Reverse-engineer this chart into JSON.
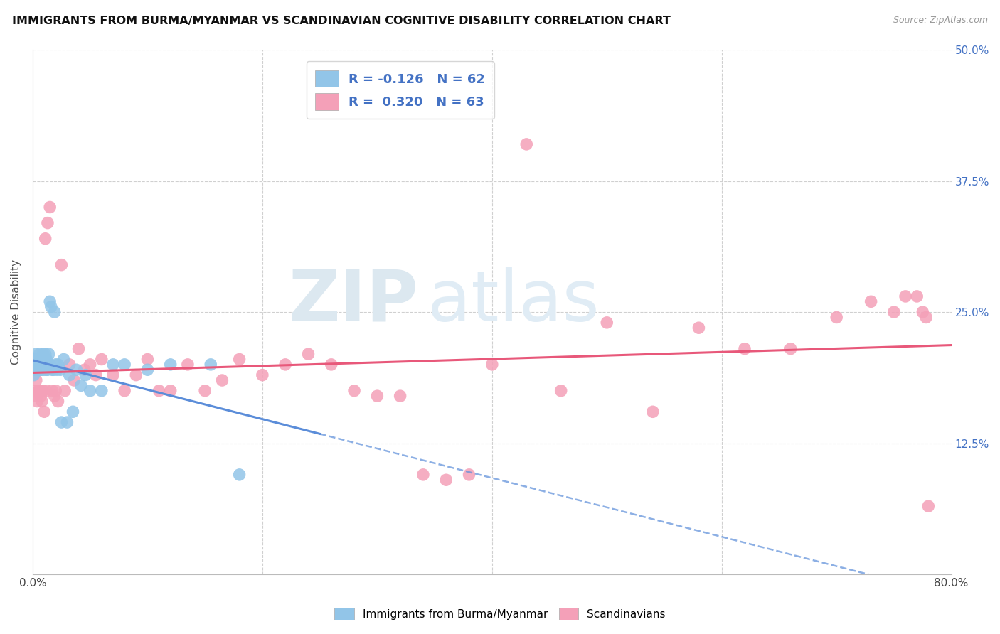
{
  "title": "IMMIGRANTS FROM BURMA/MYANMAR VS SCANDINAVIAN COGNITIVE DISABILITY CORRELATION CHART",
  "source": "Source: ZipAtlas.com",
  "ylabel": "Cognitive Disability",
  "xlim": [
    0.0,
    0.8
  ],
  "ylim": [
    0.0,
    0.5
  ],
  "blue_color": "#92C5E8",
  "pink_color": "#F4A0B8",
  "blue_line_color": "#5B8DD9",
  "pink_line_color": "#E8587A",
  "watermark_zip": "ZIP",
  "watermark_atlas": "atlas",
  "legend_blue_label": "R = -0.126   N = 62",
  "legend_pink_label": "R =  0.320   N = 63",
  "legend_label_blue": "Immigrants from Burma/Myanmar",
  "legend_label_pink": "Scandinavians",
  "blue_x": [
    0.0005,
    0.001,
    0.0015,
    0.002,
    0.002,
    0.0025,
    0.003,
    0.003,
    0.0035,
    0.004,
    0.004,
    0.004,
    0.005,
    0.005,
    0.005,
    0.006,
    0.006,
    0.006,
    0.007,
    0.007,
    0.007,
    0.008,
    0.008,
    0.008,
    0.009,
    0.009,
    0.01,
    0.01,
    0.01,
    0.011,
    0.011,
    0.012,
    0.012,
    0.013,
    0.013,
    0.014,
    0.015,
    0.015,
    0.016,
    0.017,
    0.018,
    0.019,
    0.02,
    0.021,
    0.022,
    0.024,
    0.025,
    0.027,
    0.03,
    0.032,
    0.035,
    0.038,
    0.042,
    0.046,
    0.05,
    0.06,
    0.07,
    0.08,
    0.1,
    0.12,
    0.155,
    0.18
  ],
  "blue_y": [
    0.205,
    0.19,
    0.2,
    0.195,
    0.2,
    0.195,
    0.2,
    0.21,
    0.205,
    0.195,
    0.205,
    0.2,
    0.195,
    0.205,
    0.2,
    0.205,
    0.195,
    0.21,
    0.205,
    0.2,
    0.195,
    0.2,
    0.205,
    0.195,
    0.2,
    0.21,
    0.2,
    0.195,
    0.205,
    0.2,
    0.21,
    0.195,
    0.205,
    0.2,
    0.195,
    0.21,
    0.26,
    0.2,
    0.255,
    0.195,
    0.195,
    0.25,
    0.2,
    0.195,
    0.2,
    0.195,
    0.145,
    0.205,
    0.145,
    0.19,
    0.155,
    0.195,
    0.18,
    0.19,
    0.175,
    0.175,
    0.2,
    0.2,
    0.195,
    0.2,
    0.2,
    0.095
  ],
  "pink_x": [
    0.001,
    0.002,
    0.003,
    0.004,
    0.005,
    0.006,
    0.007,
    0.008,
    0.009,
    0.01,
    0.011,
    0.012,
    0.013,
    0.015,
    0.017,
    0.019,
    0.02,
    0.022,
    0.025,
    0.028,
    0.032,
    0.036,
    0.04,
    0.045,
    0.05,
    0.055,
    0.06,
    0.07,
    0.08,
    0.09,
    0.1,
    0.11,
    0.12,
    0.135,
    0.15,
    0.165,
    0.18,
    0.2,
    0.22,
    0.24,
    0.26,
    0.28,
    0.3,
    0.32,
    0.34,
    0.36,
    0.38,
    0.4,
    0.43,
    0.46,
    0.5,
    0.54,
    0.58,
    0.62,
    0.66,
    0.7,
    0.73,
    0.75,
    0.76,
    0.77,
    0.775,
    0.778,
    0.78
  ],
  "pink_y": [
    0.175,
    0.17,
    0.185,
    0.165,
    0.175,
    0.175,
    0.17,
    0.165,
    0.175,
    0.155,
    0.32,
    0.175,
    0.335,
    0.35,
    0.175,
    0.17,
    0.175,
    0.165,
    0.295,
    0.175,
    0.2,
    0.185,
    0.215,
    0.195,
    0.2,
    0.19,
    0.205,
    0.19,
    0.175,
    0.19,
    0.205,
    0.175,
    0.175,
    0.2,
    0.175,
    0.185,
    0.205,
    0.19,
    0.2,
    0.21,
    0.2,
    0.175,
    0.17,
    0.17,
    0.095,
    0.09,
    0.095,
    0.2,
    0.41,
    0.175,
    0.24,
    0.155,
    0.235,
    0.215,
    0.215,
    0.245,
    0.26,
    0.25,
    0.265,
    0.265,
    0.25,
    0.245,
    0.065
  ],
  "grid_color": "#d0d0d0",
  "spine_color": "#bbbbbb"
}
